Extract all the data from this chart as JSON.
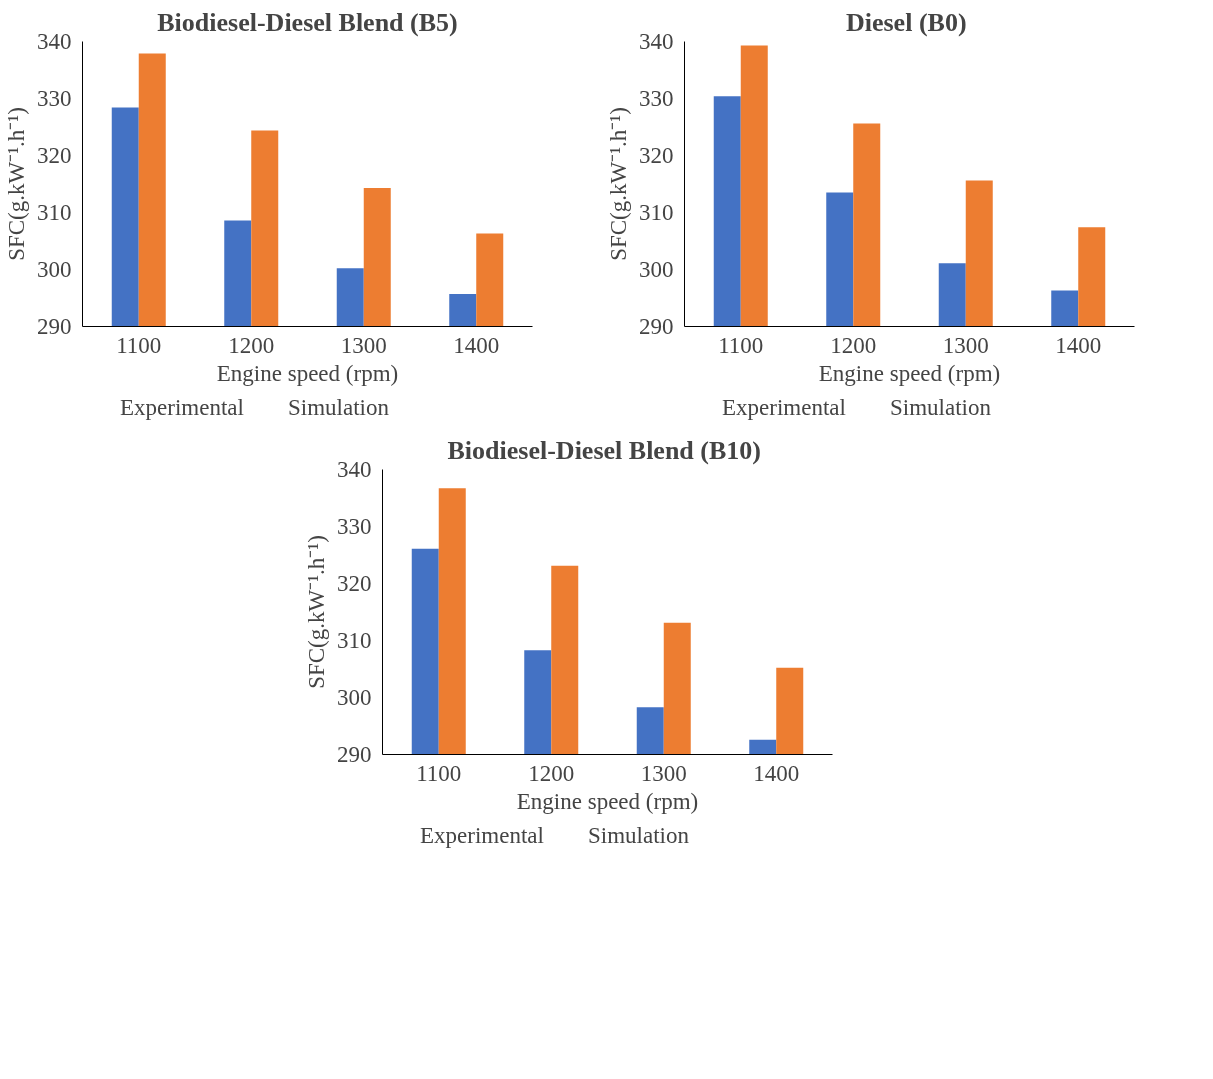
{
  "chart_data": [
    {
      "type": "bar",
      "title": "Biodiesel-Diesel Blend (B5)",
      "xlabel": "Engine speed (rpm)",
      "ylabel": "SFC(g.kW⁻¹.h⁻¹)",
      "categories": [
        "1100",
        "1200",
        "1300",
        "1400"
      ],
      "ylim": [
        290,
        340
      ],
      "yticks": [
        290,
        300,
        310,
        320,
        330,
        340
      ],
      "grid": false,
      "legend": "bottom",
      "series": [
        {
          "name": "Experimental",
          "color": "#4472c4",
          "values": [
            328.4,
            308.6,
            300.2,
            295.7
          ]
        },
        {
          "name": "Simulation",
          "color": "#ed7d31",
          "values": [
            337.9,
            324.4,
            314.3,
            306.3
          ]
        }
      ]
    },
    {
      "type": "bar",
      "title": "Diesel  (B0)",
      "xlabel": "Engine speed (rpm)",
      "ylabel": "SFC(g.kW⁻¹.h⁻¹)",
      "categories": [
        "1100",
        "1200",
        "1300",
        "1400"
      ],
      "ylim": [
        290,
        340
      ],
      "yticks": [
        290,
        300,
        310,
        320,
        330,
        340
      ],
      "grid": false,
      "legend": "bottom",
      "series": [
        {
          "name": "Experimental",
          "color": "#4472c4",
          "values": [
            330.4,
            313.5,
            301.1,
            296.3
          ]
        },
        {
          "name": "Simulation",
          "color": "#ed7d31",
          "values": [
            339.3,
            325.6,
            315.6,
            307.4
          ]
        }
      ]
    },
    {
      "type": "bar",
      "title": "Biodiesel-Diesel Blend  (B10)",
      "xlabel": "Engine speed (rpm)",
      "ylabel": "SFC(g.kW⁻¹.h⁻¹)",
      "categories": [
        "1100",
        "1200",
        "1300",
        "1400"
      ],
      "ylim": [
        290,
        340
      ],
      "yticks": [
        290,
        300,
        310,
        320,
        330,
        340
      ],
      "grid": false,
      "legend": "bottom",
      "series": [
        {
          "name": "Experimental",
          "color": "#4472c4",
          "values": [
            326.1,
            308.3,
            298.3,
            292.6
          ]
        },
        {
          "name": "Simulation",
          "color": "#ed7d31",
          "values": [
            336.7,
            323.1,
            313.1,
            305.2
          ]
        }
      ]
    }
  ]
}
